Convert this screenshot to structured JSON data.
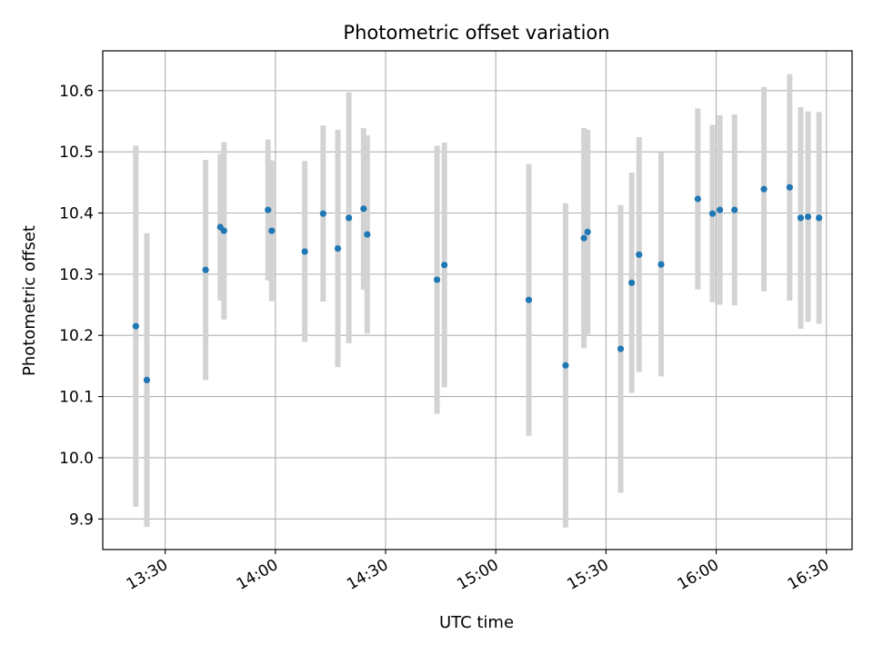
{
  "chart_data": {
    "type": "scatter",
    "title": "Photometric offset variation",
    "xlabel": "UTC time",
    "ylabel": "Photometric offset",
    "grid": true,
    "x_tick_labels": [
      "13:30",
      "14:00",
      "14:30",
      "15:00",
      "15:30",
      "16:00",
      "16:30"
    ],
    "x_tick_values": [
      "13:30",
      "14:00",
      "14:30",
      "15:00",
      "15:30",
      "16:00",
      "16:30"
    ],
    "xlim": [
      "13:13",
      "16:37"
    ],
    "y_ticks": [
      9.9,
      10.0,
      10.1,
      10.2,
      10.3,
      10.4,
      10.5,
      10.6
    ],
    "y_tick_labels": [
      "9.9",
      "10.0",
      "10.1",
      "10.2",
      "10.3",
      "10.4",
      "10.5",
      "10.6"
    ],
    "ylim": [
      9.85,
      10.665
    ],
    "colors": {
      "points": "#1f77b4",
      "error_bars": "#d3d3d3",
      "grid": "#b0b0b0"
    },
    "series": [
      {
        "points": [
          {
            "x": "13:22",
            "y": 10.215,
            "err": 0.295
          },
          {
            "x": "13:25",
            "y": 10.127,
            "err": 0.24
          },
          {
            "x": "13:41",
            "y": 10.307,
            "err": 0.18
          },
          {
            "x": "13:45",
            "y": 10.377,
            "err": 0.12
          },
          {
            "x": "13:46",
            "y": 10.371,
            "err": 0.145
          },
          {
            "x": "13:58",
            "y": 10.405,
            "err": 0.115
          },
          {
            "x": "13:59",
            "y": 10.371,
            "err": 0.115
          },
          {
            "x": "14:08",
            "y": 10.337,
            "err": 0.148
          },
          {
            "x": "14:13",
            "y": 10.399,
            "err": 0.144
          },
          {
            "x": "14:17",
            "y": 10.342,
            "err": 0.194
          },
          {
            "x": "14:20",
            "y": 10.392,
            "err": 0.205
          },
          {
            "x": "14:24",
            "y": 10.407,
            "err": 0.132
          },
          {
            "x": "14:25",
            "y": 10.365,
            "err": 0.162
          },
          {
            "x": "14:44",
            "y": 10.291,
            "err": 0.219
          },
          {
            "x": "14:46",
            "y": 10.315,
            "err": 0.2
          },
          {
            "x": "15:09",
            "y": 10.258,
            "err": 0.222
          },
          {
            "x": "15:19",
            "y": 10.151,
            "err": 0.265
          },
          {
            "x": "15:24",
            "y": 10.359,
            "err": 0.18
          },
          {
            "x": "15:25",
            "y": 10.369,
            "err": 0.167
          },
          {
            "x": "15:34",
            "y": 10.178,
            "err": 0.235
          },
          {
            "x": "15:37",
            "y": 10.286,
            "err": 0.18
          },
          {
            "x": "15:39",
            "y": 10.332,
            "err": 0.192
          },
          {
            "x": "15:45",
            "y": 10.316,
            "err": 0.183
          },
          {
            "x": "15:55",
            "y": 10.423,
            "err": 0.148
          },
          {
            "x": "15:59",
            "y": 10.399,
            "err": 0.145
          },
          {
            "x": "16:01",
            "y": 10.405,
            "err": 0.155
          },
          {
            "x": "16:05",
            "y": 10.405,
            "err": 0.156
          },
          {
            "x": "16:13",
            "y": 10.439,
            "err": 0.167
          },
          {
            "x": "16:20",
            "y": 10.442,
            "err": 0.185
          },
          {
            "x": "16:23",
            "y": 10.392,
            "err": 0.181
          },
          {
            "x": "16:25",
            "y": 10.394,
            "err": 0.172
          },
          {
            "x": "16:28",
            "y": 10.392,
            "err": 0.173
          }
        ]
      }
    ]
  }
}
